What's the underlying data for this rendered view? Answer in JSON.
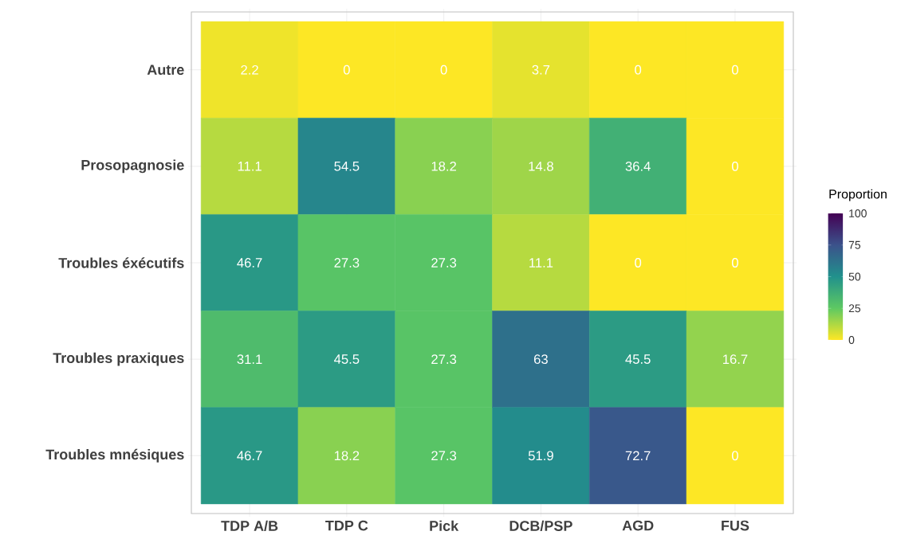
{
  "chart_data": {
    "type": "heatmap",
    "categories": [
      "TDP A/B",
      "TDP C",
      "Pick",
      "DCB/PSP",
      "AGD",
      "FUS"
    ],
    "y_categories": [
      "Autre",
      "Prosopagnosie",
      "Troubles éxécutifs",
      "Troubles praxiques",
      "Troubles mnésiques"
    ],
    "cells": [
      [
        2.2,
        0,
        0,
        3.7,
        0,
        0
      ],
      [
        11.1,
        54.5,
        18.2,
        14.8,
        36.4,
        0
      ],
      [
        46.7,
        27.3,
        27.3,
        11.1,
        0,
        0
      ],
      [
        31.1,
        45.5,
        27.3,
        63,
        45.5,
        16.7
      ],
      [
        46.7,
        18.2,
        27.3,
        51.9,
        72.7,
        0
      ]
    ],
    "data_labels": true,
    "clabel": "Proportion",
    "clim": [
      0,
      100
    ],
    "cticks": [
      0,
      25,
      50,
      75,
      100
    ],
    "grid": true
  }
}
